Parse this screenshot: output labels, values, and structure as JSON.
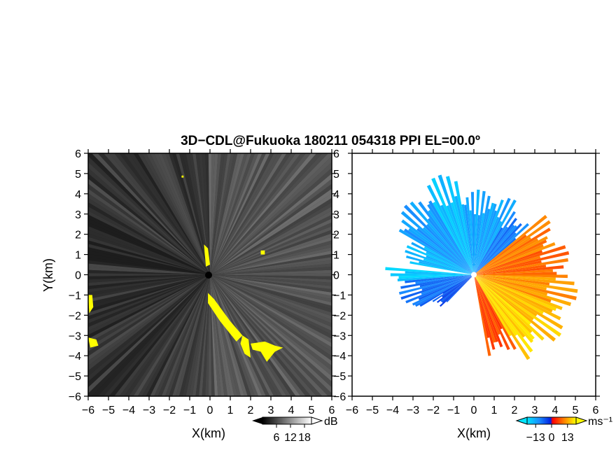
{
  "chart_data": [
    {
      "type": "heatmap",
      "panel": "left",
      "xlabel": "X(km)",
      "ylabel": "Y(km)",
      "xlim": [
        -6,
        6
      ],
      "ylim": [
        -6,
        6
      ],
      "xticks": [
        "−6",
        "−5",
        "−4",
        "−3",
        "−2",
        "−1",
        "0",
        "1",
        "2",
        "3",
        "4",
        "5",
        "6"
      ],
      "yticks": [
        "6",
        "5",
        "4",
        "3",
        "2",
        "1",
        "0",
        "−1",
        "−2",
        "−3",
        "−4",
        "−5",
        "−6"
      ],
      "colorbar": {
        "unit": "dB",
        "tick_labels": [
          "6",
          "12",
          "18"
        ],
        "range": [
          0,
          21
        ]
      },
      "background_color": "#111111",
      "echo_color": "#ffff00",
      "echo_regions": [
        [
          [
            -6.0,
            -1.0
          ],
          [
            -5.8,
            -1.0
          ],
          [
            -5.75,
            -1.6
          ],
          [
            -5.95,
            -1.9
          ]
        ],
        [
          [
            -6.0,
            -3.1
          ],
          [
            -5.6,
            -3.2
          ],
          [
            -5.5,
            -3.5
          ],
          [
            -5.9,
            -3.6
          ]
        ],
        [
          [
            -0.1,
            -0.9
          ],
          [
            0.2,
            -1.2
          ],
          [
            1.0,
            -2.3
          ],
          [
            1.6,
            -3.0
          ],
          [
            1.3,
            -3.3
          ],
          [
            0.5,
            -2.3
          ],
          [
            -0.1,
            -1.4
          ]
        ],
        [
          [
            1.6,
            -3.0
          ],
          [
            1.9,
            -3.2
          ],
          [
            2.0,
            -4.1
          ],
          [
            1.7,
            -3.9
          ],
          [
            1.5,
            -3.4
          ]
        ],
        [
          [
            2.0,
            -3.4
          ],
          [
            2.7,
            -3.3
          ],
          [
            3.2,
            -3.5
          ],
          [
            3.6,
            -3.6
          ],
          [
            3.2,
            -3.8
          ],
          [
            2.8,
            -4.3
          ],
          [
            2.5,
            -3.8
          ],
          [
            2.1,
            -3.7
          ]
        ],
        [
          [
            -0.3,
            1.5
          ],
          [
            -0.1,
            1.3
          ],
          [
            0.0,
            0.5
          ],
          [
            -0.2,
            0.4
          ]
        ],
        [
          [
            2.5,
            1.2
          ],
          [
            2.7,
            1.2
          ],
          [
            2.7,
            1.0
          ],
          [
            2.5,
            1.0
          ]
        ],
        [
          [
            -1.4,
            4.9
          ],
          [
            -1.3,
            4.9
          ],
          [
            -1.3,
            4.8
          ],
          [
            -1.4,
            4.8
          ]
        ]
      ]
    },
    {
      "type": "heatmap",
      "panel": "right",
      "xlabel": "X(km)",
      "xlim": [
        -6,
        6
      ],
      "ylim": [
        -6,
        6
      ],
      "xticks": [
        "−6",
        "−5",
        "−4",
        "−3",
        "−2",
        "−1",
        "0",
        "1",
        "2",
        "3",
        "4",
        "5",
        "6"
      ],
      "yticks": [
        "6",
        "5",
        "4",
        "3",
        "2",
        "1",
        "0",
        "−1",
        "−2",
        "−3",
        "−4",
        "−5",
        "−6"
      ],
      "colorbar": {
        "unit": "ms⁻¹",
        "tick_labels": [
          "−13",
          "0",
          "13"
        ],
        "range": [
          -20,
          20
        ]
      },
      "velocity_sectors": [
        {
          "from_deg": 100,
          "to_deg": 120,
          "r_km": 5.2,
          "velocity": -16
        },
        {
          "from_deg": 120,
          "to_deg": 150,
          "r_km": 4.8,
          "velocity": -12
        },
        {
          "from_deg": 60,
          "to_deg": 100,
          "r_km": 4.2,
          "velocity": -13
        },
        {
          "from_deg": 40,
          "to_deg": 60,
          "r_km": 3.8,
          "velocity": -9
        },
        {
          "from_deg": 150,
          "to_deg": 170,
          "r_km": 3.6,
          "velocity": -15
        },
        {
          "from_deg": 175,
          "to_deg": 185,
          "r_km": 4.5,
          "velocity": -17
        },
        {
          "from_deg": 185,
          "to_deg": 210,
          "r_km": 3.8,
          "velocity": -8
        },
        {
          "from_deg": 210,
          "to_deg": 225,
          "r_km": 2.5,
          "velocity": -5
        },
        {
          "from_deg": 20,
          "to_deg": 40,
          "r_km": 4.6,
          "velocity": 10
        },
        {
          "from_deg": 0,
          "to_deg": 20,
          "r_km": 4.8,
          "velocity": 8
        },
        {
          "from_deg": -20,
          "to_deg": 0,
          "r_km": 5.2,
          "velocity": 12
        },
        {
          "from_deg": -40,
          "to_deg": -20,
          "r_km": 5.2,
          "velocity": 15
        },
        {
          "from_deg": -60,
          "to_deg": -40,
          "r_km": 5.0,
          "velocity": 17
        },
        {
          "from_deg": -80,
          "to_deg": -60,
          "r_km": 4.2,
          "velocity": 6
        }
      ]
    }
  ],
  "figure": {
    "title": "3D−CDL@Fukuoka 180211 054318 PPI EL=00.0º"
  }
}
